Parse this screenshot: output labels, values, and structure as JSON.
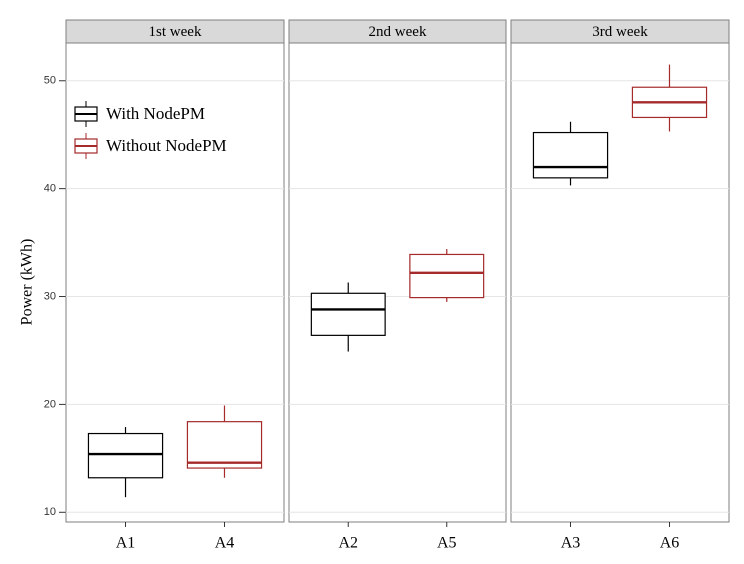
{
  "chart_data": {
    "type": "box",
    "ylabel": "Power (kWh)",
    "ylim": [
      9.1,
      53.5
    ],
    "yticks": [
      10,
      20,
      30,
      40,
      50
    ],
    "grid": true,
    "legend_position": "top-left",
    "series": [
      {
        "name": "With NodePM",
        "color": "#000000"
      },
      {
        "name": "Without NodePM",
        "color": "#a52a2a"
      }
    ],
    "facets": [
      {
        "title": "1st week",
        "categories": [
          "A1",
          "A4"
        ],
        "boxes": [
          {
            "min": 11.4,
            "q1": 13.2,
            "median": 15.4,
            "q3": 17.3,
            "max": 17.9
          },
          {
            "min": 13.2,
            "q1": 14.1,
            "median": 14.6,
            "q3": 18.4,
            "max": 19.9
          }
        ]
      },
      {
        "title": "2nd week",
        "categories": [
          "A2",
          "A5"
        ],
        "boxes": [
          {
            "min": 24.9,
            "q1": 26.4,
            "median": 28.8,
            "q3": 30.3,
            "max": 31.3
          },
          {
            "min": 29.5,
            "q1": 29.9,
            "median": 32.2,
            "q3": 33.9,
            "max": 34.4
          }
        ]
      },
      {
        "title": "3rd week",
        "categories": [
          "A3",
          "A6"
        ],
        "boxes": [
          {
            "min": 40.3,
            "q1": 41.0,
            "median": 42.0,
            "q3": 45.2,
            "max": 46.2
          },
          {
            "min": 45.3,
            "q1": 46.6,
            "median": 48.0,
            "q3": 49.4,
            "max": 51.5
          }
        ]
      }
    ]
  }
}
